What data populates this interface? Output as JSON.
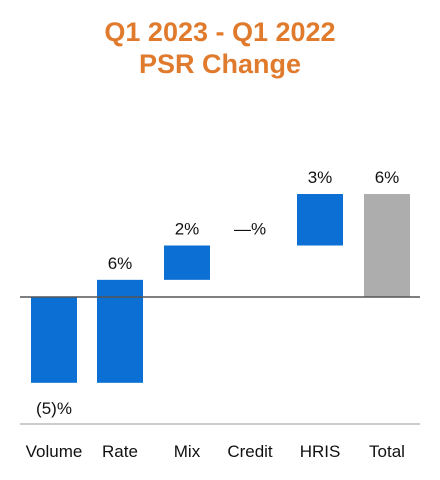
{
  "colors": {
    "title": "#E07B2E",
    "bar": "#0B6FD3",
    "total": "#ADADAD",
    "axis": "#555555",
    "baseline": "#BBBBBB"
  },
  "chart_data": {
    "type": "bar",
    "subtype": "waterfall",
    "title": "Q1 2023 - Q1 2022",
    "subtitle": "PSR Change",
    "categories": [
      "Volume",
      "Rate",
      "Mix",
      "Credit",
      "HRIS",
      "Total"
    ],
    "values": [
      -5,
      6,
      2,
      0,
      3,
      6
    ],
    "data_labels": [
      "(5)%",
      "6%",
      "2%",
      "—%",
      "3%",
      "6%"
    ],
    "is_total": [
      false,
      false,
      false,
      false,
      false,
      true
    ],
    "ylim": [
      -7.4,
      6.9
    ],
    "grid": false,
    "legend": "none"
  }
}
